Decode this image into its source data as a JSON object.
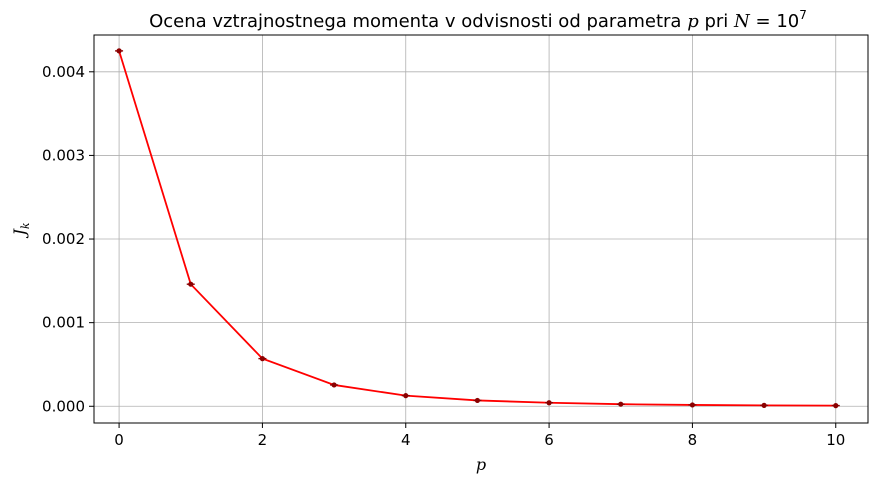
{
  "chart_data": {
    "type": "line",
    "title": {
      "text": "Ocena vztrajnostnega momenta v odvisnosti od parametra",
      "param": "p",
      "mid": "pri",
      "n_var": "N",
      "eq": "= 10",
      "exp": "7"
    },
    "xlabel": "p",
    "ylabel": {
      "base": "J",
      "sub": "k"
    },
    "xlim": [
      -0.35,
      10.45
    ],
    "ylim": [
      -0.0002,
      0.00444
    ],
    "x_ticks": [
      0,
      2,
      4,
      6,
      8,
      10
    ],
    "x_tick_labels": [
      "0",
      "2",
      "4",
      "6",
      "8",
      "10"
    ],
    "y_ticks": [
      0.0,
      0.001,
      0.002,
      0.003,
      0.004
    ],
    "y_tick_labels": [
      "0.000",
      "0.001",
      "0.002",
      "0.003",
      "0.004"
    ],
    "grid": true,
    "series": [
      {
        "x": [
          0,
          1,
          2,
          3,
          4,
          5,
          6,
          7,
          8,
          9,
          10
        ],
        "values": [
          0.00425,
          0.00146,
          0.00057,
          0.000255,
          0.000127,
          7e-05,
          4.2e-05,
          2.5e-05,
          1.6e-05,
          1.1e-05,
          8e-06
        ],
        "color": "#ff0000",
        "marker_color": "#8b0000"
      }
    ]
  }
}
